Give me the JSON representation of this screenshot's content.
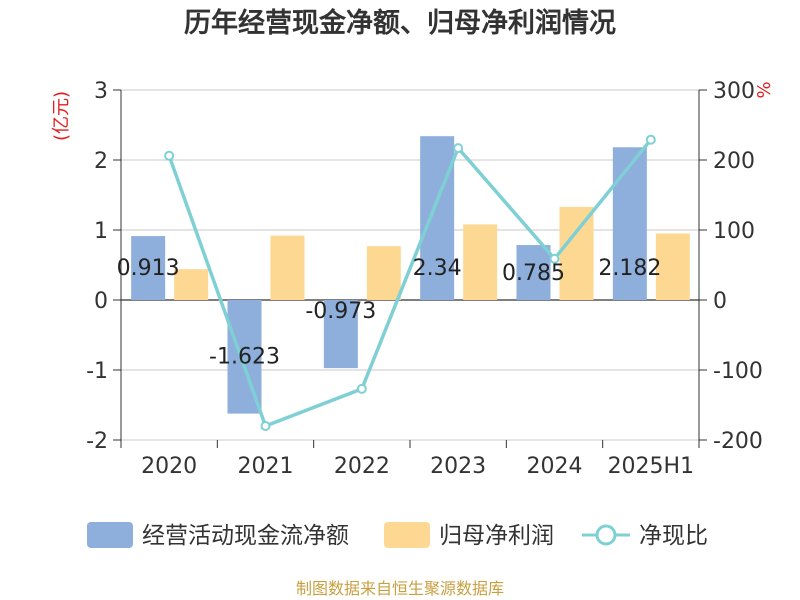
{
  "chart_data": {
    "type": "bar",
    "title": "历年经营现金净额、归母净利润情况",
    "categories": [
      "2020",
      "2021",
      "2022",
      "2023",
      "2024",
      "2025H1"
    ],
    "left_axis": {
      "unit": "(亿元)",
      "ylim": [
        -2,
        3
      ],
      "ticks": [
        3,
        2,
        1,
        0,
        -1,
        -2
      ]
    },
    "right_axis": {
      "unit": "%",
      "ylim": [
        -200,
        300
      ],
      "ticks": [
        300,
        200,
        100,
        0,
        -100,
        -200
      ]
    },
    "series": [
      {
        "name": "经营活动现金流净额",
        "type": "bar",
        "axis": "left",
        "values": [
          0.913,
          -1.623,
          -0.973,
          2.34,
          0.785,
          2.182
        ],
        "data_labels": [
          "0.913",
          "-1.623",
          "-0.973",
          "2.34",
          "0.785",
          "2.182"
        ]
      },
      {
        "name": "归母净利润",
        "type": "bar",
        "axis": "left",
        "values": [
          0.44,
          0.92,
          0.77,
          1.08,
          1.33,
          0.95
        ]
      },
      {
        "name": "净现比",
        "type": "line",
        "axis": "right",
        "values": [
          206,
          -180,
          -127,
          217,
          59,
          229
        ]
      }
    ],
    "colors": {
      "bar1": "#8eaedc",
      "bar2": "#fdd893",
      "line": "#7fd0d4"
    },
    "grid": true,
    "legend_position": "bottom"
  },
  "source": "制图数据来自恒生聚源数据库"
}
